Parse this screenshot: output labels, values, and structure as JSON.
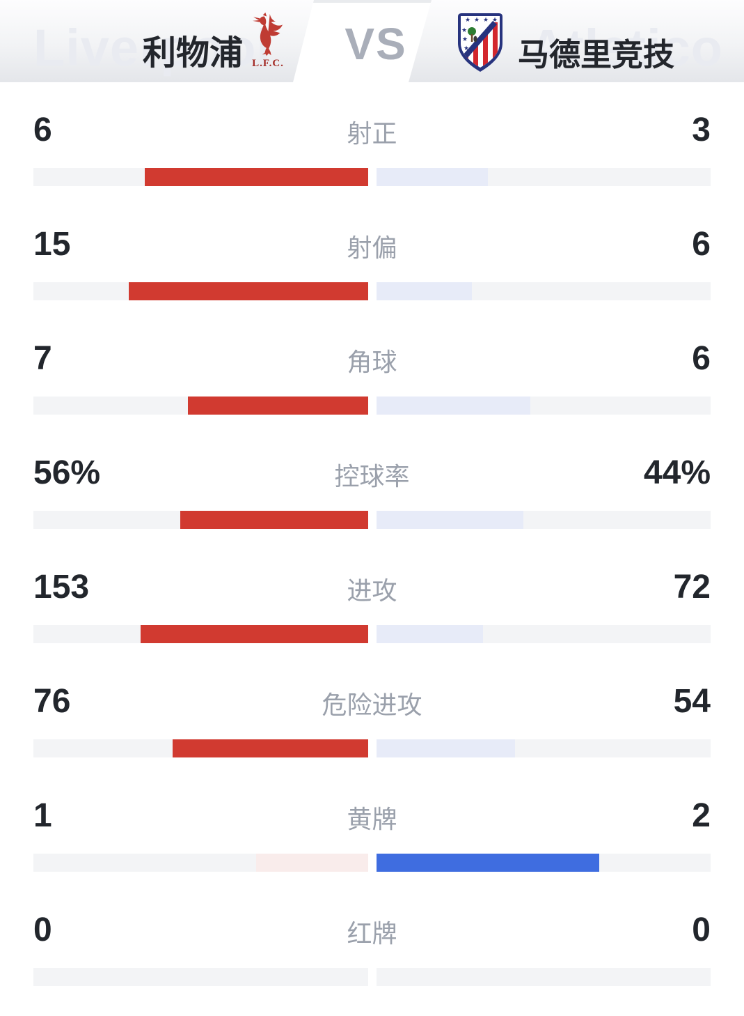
{
  "header": {
    "home": {
      "name": "利物浦",
      "watermark": "Liverpool",
      "crest_icon": "liverpool-crest",
      "crest_caption": "L.F.C."
    },
    "vs_label": "VS",
    "away": {
      "name": "马德里竞技",
      "watermark": "Atletico",
      "crest_icon": "atletico-madrid-crest"
    }
  },
  "colors": {
    "home_strong": "#d13a30",
    "home_faded": "#f9eceb",
    "away_strong": "#3f6de0",
    "away_faded": "#e7ebf8",
    "track": "#f3f4f6",
    "number": "#22262c",
    "label": "#9aa0ab"
  },
  "stats": [
    {
      "label": "射正",
      "home": "6",
      "away": "3",
      "home_val": 6,
      "away_val": 3,
      "highlight": "home"
    },
    {
      "label": "射偏",
      "home": "15",
      "away": "6",
      "home_val": 15,
      "away_val": 6,
      "highlight": "home"
    },
    {
      "label": "角球",
      "home": "7",
      "away": "6",
      "home_val": 7,
      "away_val": 6,
      "highlight": "home"
    },
    {
      "label": "控球率",
      "home": "56%",
      "away": "44%",
      "home_val": 56,
      "away_val": 44,
      "highlight": "home"
    },
    {
      "label": "进攻",
      "home": "153",
      "away": "72",
      "home_val": 153,
      "away_val": 72,
      "highlight": "home"
    },
    {
      "label": "危险进攻",
      "home": "76",
      "away": "54",
      "home_val": 76,
      "away_val": 54,
      "highlight": "home"
    },
    {
      "label": "黄牌",
      "home": "1",
      "away": "2",
      "home_val": 1,
      "away_val": 2,
      "highlight": "away"
    },
    {
      "label": "红牌",
      "home": "0",
      "away": "0",
      "home_val": 0,
      "away_val": 0,
      "highlight": "none"
    }
  ],
  "chart_data": {
    "type": "bar",
    "title": "利物浦 VS 马德里竞技",
    "layout": "paired horizontal bars growing outward from center; stat winner shown in saturated team color (home=red, away=blue), loser faded; bar length = value / (home+away)",
    "categories": [
      "射正",
      "射偏",
      "角球",
      "控球率",
      "进攻",
      "危险进攻",
      "黄牌",
      "红牌"
    ],
    "series": [
      {
        "name": "利物浦",
        "values": [
          6,
          15,
          7,
          56,
          153,
          76,
          1,
          0
        ]
      },
      {
        "name": "马德里竞技",
        "values": [
          3,
          6,
          6,
          44,
          72,
          54,
          2,
          0
        ]
      }
    ],
    "units": {
      "控球率": "percent"
    }
  }
}
